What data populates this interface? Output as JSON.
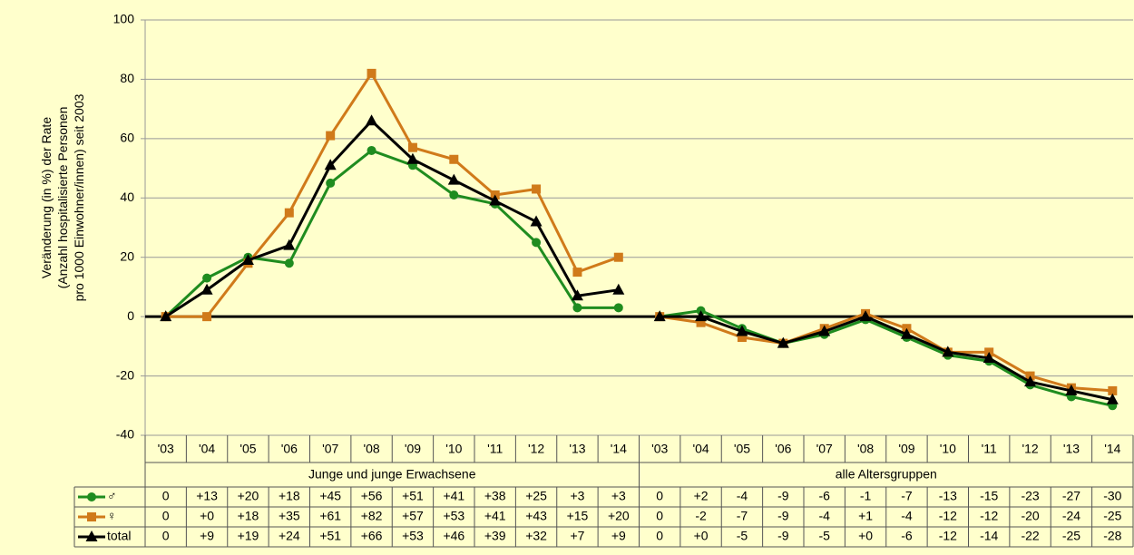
{
  "chart_data": {
    "type": "line",
    "y_label": [
      "Veränderung (in %) der Rate",
      "(Anzahl hospitalisierte Personen",
      "pro 1000 Einwohner/innen) seit 2003"
    ],
    "categories": [
      "'03",
      "'04",
      "'05",
      "'06",
      "'07",
      "'08",
      "'09",
      "'10",
      "'11",
      "'12",
      "'13",
      "'14",
      "'03",
      "'04",
      "'05",
      "'06",
      "'07",
      "'08",
      "'09",
      "'10",
      "'11",
      "'12",
      "'13",
      "'14"
    ],
    "groups": [
      "Junge und junge Erwachsene",
      "alle Altersgruppen"
    ],
    "ylim": [
      -40,
      100
    ],
    "yticks": [
      -40,
      -20,
      0,
      20,
      40,
      60,
      80,
      100
    ],
    "grid": true,
    "series": [
      {
        "name": "♂",
        "color": "#1f8c1f",
        "marker": "circle",
        "values": [
          0,
          13,
          20,
          18,
          45,
          56,
          51,
          41,
          38,
          25,
          3,
          3,
          0,
          2,
          -4,
          -9,
          -6,
          -1,
          -7,
          -13,
          -15,
          -23,
          -27,
          -30
        ],
        "value_labels": [
          "0",
          "+13",
          "+20",
          "+18",
          "+45",
          "+56",
          "+51",
          "+41",
          "+38",
          "+25",
          "+3",
          "+3",
          "0",
          "+2",
          "-4",
          "-9",
          "-6",
          "-1",
          "-7",
          "-13",
          "-15",
          "-23",
          "-27",
          "-30"
        ]
      },
      {
        "name": "♀",
        "color": "#d07a1a",
        "marker": "square",
        "values": [
          0,
          0,
          18,
          35,
          61,
          82,
          57,
          53,
          41,
          43,
          15,
          20,
          0,
          -2,
          -7,
          -9,
          -4,
          1,
          -4,
          -12,
          -12,
          -20,
          -24,
          -25
        ],
        "value_labels": [
          "0",
          "+0",
          "+18",
          "+35",
          "+61",
          "+82",
          "+57",
          "+53",
          "+41",
          "+43",
          "+15",
          "+20",
          "0",
          "-2",
          "-7",
          "-9",
          "-4",
          "+1",
          "-4",
          "-12",
          "-12",
          "-20",
          "-24",
          "-25"
        ]
      },
      {
        "name": "total",
        "color": "#000000",
        "marker": "triangle",
        "values": [
          0,
          9,
          19,
          24,
          51,
          66,
          53,
          46,
          39,
          32,
          7,
          9,
          0,
          0,
          -5,
          -9,
          -5,
          0,
          -6,
          -12,
          -14,
          -22,
          -25,
          -28
        ],
        "value_labels": [
          "0",
          "+9",
          "+19",
          "+24",
          "+51",
          "+66",
          "+53",
          "+46",
          "+39",
          "+32",
          "+7",
          "+9",
          "0",
          "+0",
          "-5",
          "-9",
          "-5",
          "+0",
          "-6",
          "-12",
          "-14",
          "-22",
          "-25",
          "-28"
        ]
      }
    ]
  }
}
